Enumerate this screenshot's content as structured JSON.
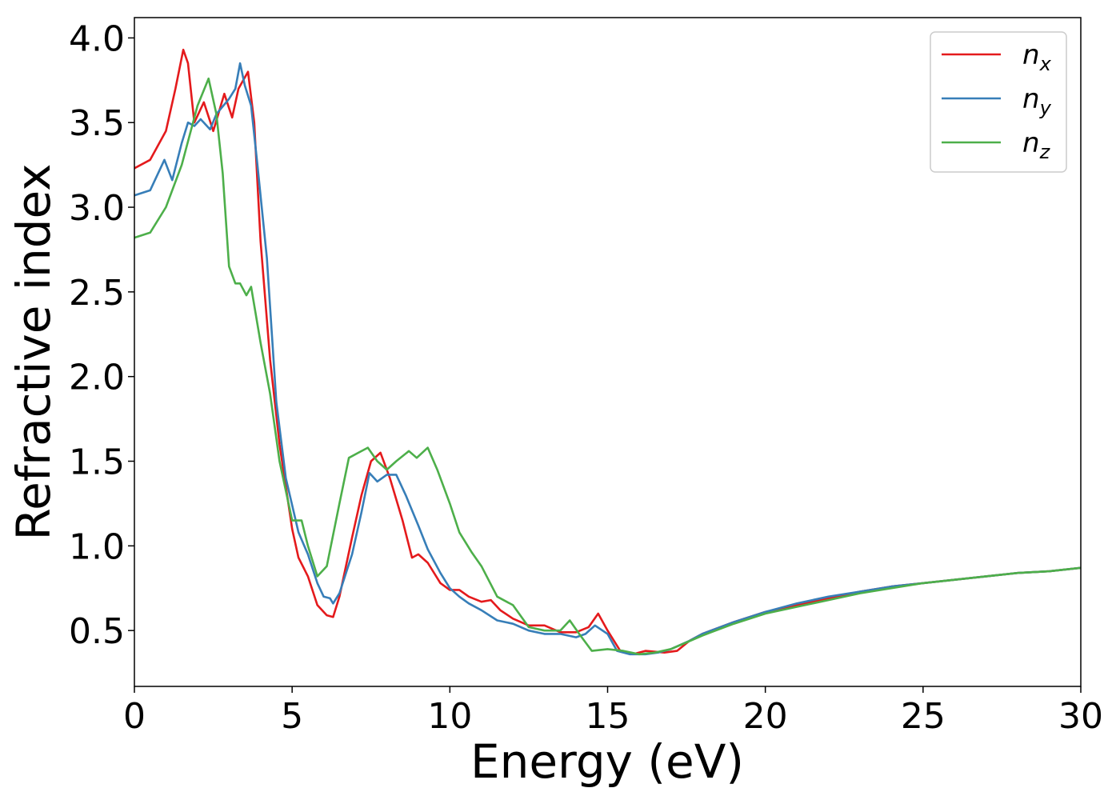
{
  "chart_data": {
    "type": "line",
    "title": "",
    "xlabel": "Energy (eV)",
    "ylabel": "Refractive index",
    "xlim": [
      0,
      30
    ],
    "ylim": [
      0.17,
      4.12
    ],
    "xticks": [
      "0",
      "5",
      "10",
      "15",
      "20",
      "25",
      "30"
    ],
    "yticks": [
      "0.5",
      "1.0",
      "1.5",
      "2.0",
      "2.5",
      "3.0",
      "3.5",
      "4.0"
    ],
    "grid": false,
    "legend_position": "top-right",
    "series": [
      {
        "name": "n",
        "subscript": "x",
        "color": "#e41a1c",
        "points": [
          [
            0,
            3.23
          ],
          [
            0.5,
            3.28
          ],
          [
            1,
            3.45
          ],
          [
            1.3,
            3.7
          ],
          [
            1.55,
            3.93
          ],
          [
            1.7,
            3.85
          ],
          [
            1.9,
            3.5
          ],
          [
            2.2,
            3.62
          ],
          [
            2.5,
            3.45
          ],
          [
            2.85,
            3.67
          ],
          [
            3.1,
            3.53
          ],
          [
            3.3,
            3.7
          ],
          [
            3.6,
            3.8
          ],
          [
            3.8,
            3.5
          ],
          [
            4.0,
            2.8
          ],
          [
            4.3,
            2.1
          ],
          [
            4.6,
            1.6
          ],
          [
            5.0,
            1.1
          ],
          [
            5.2,
            0.93
          ],
          [
            5.5,
            0.82
          ],
          [
            5.8,
            0.65
          ],
          [
            6.1,
            0.59
          ],
          [
            6.3,
            0.58
          ],
          [
            6.5,
            0.7
          ],
          [
            6.9,
            1.05
          ],
          [
            7.2,
            1.3
          ],
          [
            7.5,
            1.5
          ],
          [
            7.8,
            1.55
          ],
          [
            8.1,
            1.4
          ],
          [
            8.5,
            1.15
          ],
          [
            8.8,
            0.93
          ],
          [
            9.0,
            0.95
          ],
          [
            9.3,
            0.9
          ],
          [
            9.7,
            0.78
          ],
          [
            10.0,
            0.74
          ],
          [
            10.3,
            0.74
          ],
          [
            10.6,
            0.7
          ],
          [
            11.0,
            0.67
          ],
          [
            11.3,
            0.68
          ],
          [
            11.6,
            0.62
          ],
          [
            12.0,
            0.57
          ],
          [
            12.5,
            0.53
          ],
          [
            13.0,
            0.53
          ],
          [
            13.5,
            0.49
          ],
          [
            14.0,
            0.49
          ],
          [
            14.4,
            0.52
          ],
          [
            14.7,
            0.6
          ],
          [
            15.0,
            0.5
          ],
          [
            15.4,
            0.38
          ],
          [
            15.8,
            0.36
          ],
          [
            16.2,
            0.38
          ],
          [
            16.8,
            0.37
          ],
          [
            17.2,
            0.38
          ],
          [
            17.6,
            0.44
          ],
          [
            18.0,
            0.48
          ],
          [
            19.0,
            0.55
          ],
          [
            20.0,
            0.61
          ],
          [
            21.0,
            0.65
          ],
          [
            22.0,
            0.69
          ],
          [
            23.0,
            0.73
          ],
          [
            24.0,
            0.76
          ],
          [
            25.0,
            0.78
          ],
          [
            26.0,
            0.8
          ],
          [
            27.0,
            0.82
          ],
          [
            28.0,
            0.84
          ],
          [
            29.0,
            0.85
          ],
          [
            30.0,
            0.87
          ]
        ]
      },
      {
        "name": "n",
        "subscript": "y",
        "color": "#377eb8",
        "points": [
          [
            0,
            3.07
          ],
          [
            0.5,
            3.1
          ],
          [
            0.95,
            3.28
          ],
          [
            1.2,
            3.16
          ],
          [
            1.5,
            3.38
          ],
          [
            1.7,
            3.5
          ],
          [
            1.9,
            3.48
          ],
          [
            2.1,
            3.52
          ],
          [
            2.4,
            3.46
          ],
          [
            2.6,
            3.55
          ],
          [
            3.0,
            3.64
          ],
          [
            3.2,
            3.7
          ],
          [
            3.35,
            3.85
          ],
          [
            3.5,
            3.72
          ],
          [
            3.7,
            3.6
          ],
          [
            3.9,
            3.25
          ],
          [
            4.2,
            2.7
          ],
          [
            4.5,
            1.85
          ],
          [
            4.8,
            1.4
          ],
          [
            5.2,
            1.08
          ],
          [
            5.5,
            0.95
          ],
          [
            5.8,
            0.78
          ],
          [
            6.0,
            0.7
          ],
          [
            6.2,
            0.69
          ],
          [
            6.3,
            0.66
          ],
          [
            6.5,
            0.72
          ],
          [
            6.9,
            0.95
          ],
          [
            7.2,
            1.2
          ],
          [
            7.45,
            1.43
          ],
          [
            7.7,
            1.38
          ],
          [
            8.0,
            1.42
          ],
          [
            8.3,
            1.42
          ],
          [
            8.6,
            1.3
          ],
          [
            9.0,
            1.12
          ],
          [
            9.3,
            0.98
          ],
          [
            9.7,
            0.84
          ],
          [
            10.0,
            0.75
          ],
          [
            10.3,
            0.7
          ],
          [
            10.6,
            0.66
          ],
          [
            11.0,
            0.62
          ],
          [
            11.5,
            0.56
          ],
          [
            12.0,
            0.54
          ],
          [
            12.5,
            0.5
          ],
          [
            13.0,
            0.48
          ],
          [
            13.5,
            0.48
          ],
          [
            14.0,
            0.46
          ],
          [
            14.3,
            0.48
          ],
          [
            14.6,
            0.53
          ],
          [
            15.0,
            0.48
          ],
          [
            15.3,
            0.38
          ],
          [
            15.7,
            0.36
          ],
          [
            16.2,
            0.36
          ],
          [
            16.6,
            0.37
          ],
          [
            17.0,
            0.39
          ],
          [
            17.6,
            0.44
          ],
          [
            18.0,
            0.48
          ],
          [
            19.0,
            0.55
          ],
          [
            20.0,
            0.61
          ],
          [
            21.0,
            0.66
          ],
          [
            22.0,
            0.7
          ],
          [
            23.0,
            0.73
          ],
          [
            24.0,
            0.76
          ],
          [
            25.0,
            0.78
          ],
          [
            26.0,
            0.8
          ],
          [
            27.0,
            0.82
          ],
          [
            28.0,
            0.84
          ],
          [
            29.0,
            0.85
          ],
          [
            30.0,
            0.87
          ]
        ]
      },
      {
        "name": "n",
        "subscript": "z",
        "color": "#4daf4a",
        "points": [
          [
            0,
            2.82
          ],
          [
            0.5,
            2.85
          ],
          [
            1.0,
            3.0
          ],
          [
            1.5,
            3.25
          ],
          [
            2.0,
            3.6
          ],
          [
            2.35,
            3.76
          ],
          [
            2.6,
            3.55
          ],
          [
            2.8,
            3.2
          ],
          [
            3.0,
            2.65
          ],
          [
            3.2,
            2.55
          ],
          [
            3.35,
            2.55
          ],
          [
            3.55,
            2.48
          ],
          [
            3.7,
            2.53
          ],
          [
            4.0,
            2.2
          ],
          [
            4.3,
            1.9
          ],
          [
            4.6,
            1.5
          ],
          [
            5.0,
            1.15
          ],
          [
            5.3,
            1.15
          ],
          [
            5.5,
            1.0
          ],
          [
            5.8,
            0.82
          ],
          [
            6.1,
            0.88
          ],
          [
            6.5,
            1.25
          ],
          [
            6.8,
            1.52
          ],
          [
            7.1,
            1.55
          ],
          [
            7.4,
            1.58
          ],
          [
            7.7,
            1.5
          ],
          [
            8.0,
            1.45
          ],
          [
            8.3,
            1.5
          ],
          [
            8.7,
            1.56
          ],
          [
            8.95,
            1.52
          ],
          [
            9.3,
            1.58
          ],
          [
            9.6,
            1.45
          ],
          [
            10.0,
            1.25
          ],
          [
            10.3,
            1.08
          ],
          [
            10.7,
            0.96
          ],
          [
            11.0,
            0.88
          ],
          [
            11.5,
            0.7
          ],
          [
            12.0,
            0.65
          ],
          [
            12.5,
            0.52
          ],
          [
            13.0,
            0.5
          ],
          [
            13.5,
            0.5
          ],
          [
            13.8,
            0.56
          ],
          [
            14.1,
            0.48
          ],
          [
            14.5,
            0.38
          ],
          [
            15.0,
            0.39
          ],
          [
            15.5,
            0.38
          ],
          [
            16.0,
            0.36
          ],
          [
            16.5,
            0.37
          ],
          [
            17.0,
            0.39
          ],
          [
            17.5,
            0.43
          ],
          [
            18.0,
            0.47
          ],
          [
            19.0,
            0.54
          ],
          [
            20.0,
            0.6
          ],
          [
            21.0,
            0.64
          ],
          [
            22.0,
            0.68
          ],
          [
            23.0,
            0.72
          ],
          [
            24.0,
            0.75
          ],
          [
            25.0,
            0.78
          ],
          [
            26.0,
            0.8
          ],
          [
            27.0,
            0.82
          ],
          [
            28.0,
            0.84
          ],
          [
            29.0,
            0.85
          ],
          [
            30.0,
            0.87
          ]
        ]
      }
    ]
  }
}
